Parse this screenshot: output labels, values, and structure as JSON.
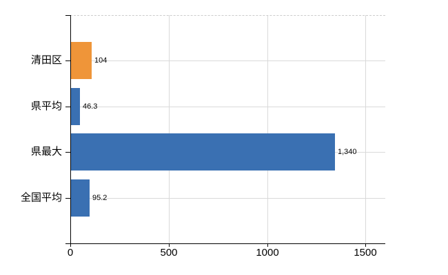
{
  "chart_data": {
    "type": "bar",
    "orientation": "horizontal",
    "title": "",
    "categories": [
      "清田区",
      "県平均",
      "県最大",
      "全国平均"
    ],
    "values": [
      104,
      46.3,
      1340,
      95.2
    ],
    "value_labels": [
      "104",
      "46.3",
      "1,340",
      "95.2"
    ],
    "bar_colors": [
      "#ef9539",
      "#3a70b2",
      "#3a70b2",
      "#3a70b2"
    ],
    "highlight_category": "清田区",
    "x_ticks": [
      0,
      500,
      1000,
      1500
    ],
    "x_tick_labels": [
      "0",
      "500",
      "1000",
      "1500"
    ],
    "xlim": [
      0,
      1600
    ],
    "grid": true,
    "legend": false
  },
  "colors": {
    "bar_orange": "#ef9539",
    "bar_blue": "#3a70b2",
    "gridline": "#d9d9d9",
    "plot_border_dashed": "#cccccc",
    "axis": "#000000",
    "text": "#000000",
    "background": "#ffffff"
  }
}
